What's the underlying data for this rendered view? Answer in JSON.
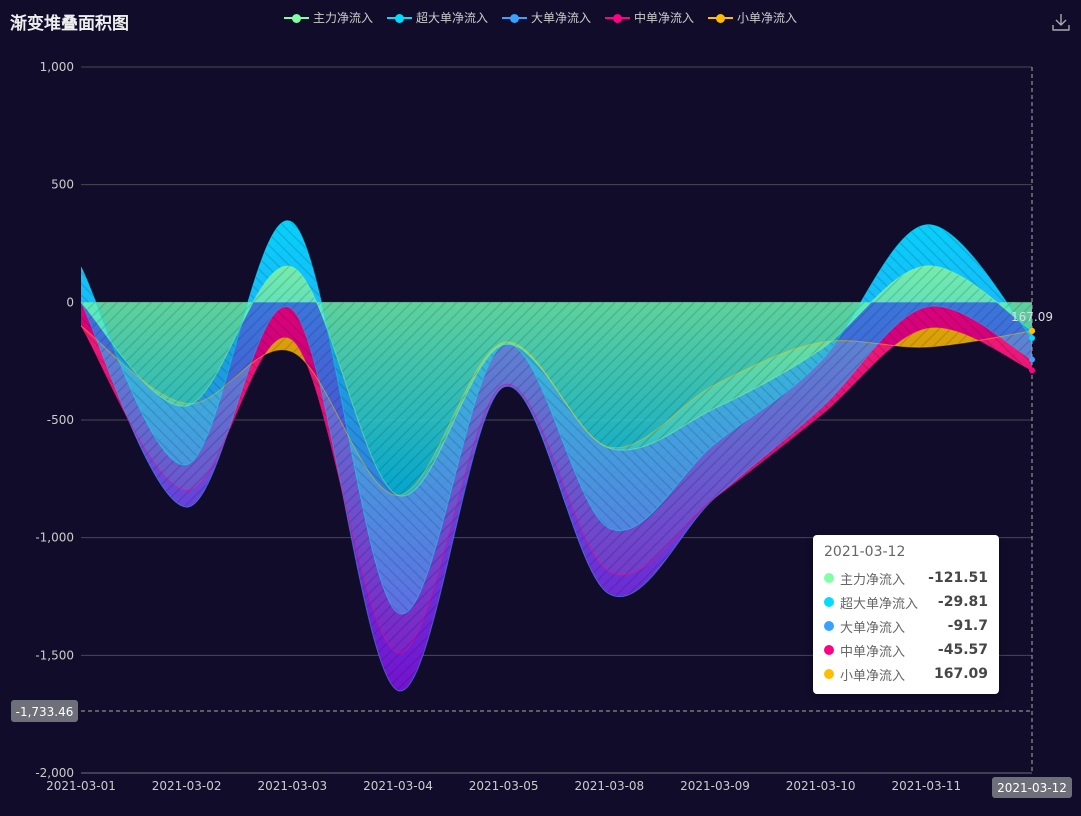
{
  "title": "渐变堆叠面积图",
  "chart_data": {
    "type": "area",
    "title": "渐变堆叠面积图",
    "stacked": true,
    "smooth": true,
    "categories": [
      "2021-03-01",
      "2021-03-02",
      "2021-03-03",
      "2021-03-04",
      "2021-03-05",
      "2021-03-08",
      "2021-03-09",
      "2021-03-10",
      "2021-03-11",
      "2021-03-12"
    ],
    "ylim": [
      -2000,
      1000
    ],
    "yticks": [
      1000,
      500,
      0,
      -500,
      -1000,
      -1500,
      -2000
    ],
    "grid": true,
    "legend_position": "top-center",
    "series": [
      {
        "name": "主力净流入",
        "color": "#80FFA5",
        "values": [
          0,
          -440,
          150,
          -820,
          -180,
          -620,
          -450,
          -200,
          155,
          -121.51
        ]
      },
      {
        "name": "超大单净流入",
        "color": "#00DDFF",
        "values": [
          150,
          -250,
          190,
          -500,
          0,
          -340,
          -150,
          -50,
          175,
          -29.81
        ]
      },
      {
        "name": "大单净流入",
        "color": "#37A2FF",
        "values": [
          -150,
          -180,
          -370,
          -330,
          -180,
          -280,
          -230,
          -200,
          -350,
          -91.7
        ]
      },
      {
        "name": "中单净流入",
        "color": "#FF0087",
        "values": [
          -100,
          70,
          -130,
          160,
          10,
          95,
          0,
          -30,
          -90,
          -45.57
        ]
      },
      {
        "name": "小单净流入",
        "color": "#FFBF00",
        "values": [
          0,
          370,
          -50,
          670,
          180,
          530,
          480,
          310,
          -80,
          167.09
        ]
      }
    ],
    "axis_pointer": {
      "x_label": "2021-03-12",
      "y_label": "-1,733.46"
    },
    "annotation": {
      "label": "167.09"
    },
    "tooltip": {
      "date": "2021-03-12",
      "rows": [
        {
          "name": "主力净流入",
          "value": "-121.51",
          "color": "#80FFA5"
        },
        {
          "name": "超大单净流入",
          "value": "-29.81",
          "color": "#00DDFF"
        },
        {
          "name": "大单净流入",
          "value": "-91.7",
          "color": "#37A2FF"
        },
        {
          "name": "中单净流入",
          "value": "-45.57",
          "color": "#FF0087"
        },
        {
          "name": "小单净流入",
          "value": "167.09",
          "color": "#FFBF00"
        }
      ]
    }
  },
  "toolbar": {
    "download_icon": "download-icon"
  }
}
